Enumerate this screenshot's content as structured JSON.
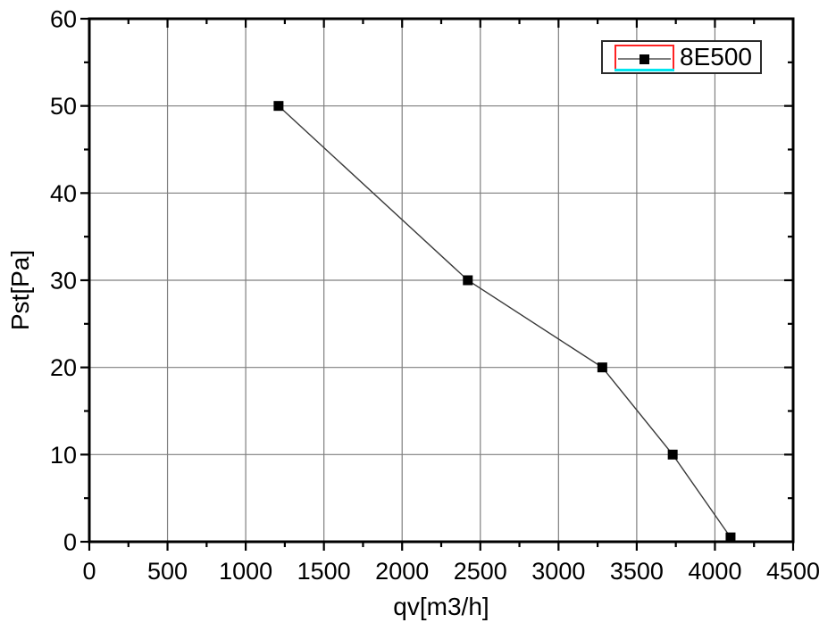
{
  "chart_data": {
    "type": "line",
    "title": "",
    "xlabel": "qv[m3/h]",
    "ylabel": "Pst[Pa]",
    "xlim": [
      0,
      4500
    ],
    "ylim": [
      0,
      60
    ],
    "x_major_ticks": [
      0,
      500,
      1000,
      1500,
      2000,
      2500,
      3000,
      3500,
      4000,
      4500
    ],
    "x_minor_step": 250,
    "y_major_ticks": [
      0,
      10,
      20,
      30,
      40,
      50,
      60
    ],
    "y_minor_step": 5,
    "grid": true,
    "legend_position": "top-right",
    "series": [
      {
        "name": "8E500",
        "marker": "square",
        "marker_size": 11,
        "color": "#000000",
        "line_color": "#3a3a3a",
        "x": [
          1210,
          2420,
          3280,
          3730,
          4100
        ],
        "y": [
          50,
          30,
          20,
          10,
          0.5
        ]
      }
    ]
  },
  "axes": {
    "x": {
      "title": "qv[m3/h]"
    },
    "y": {
      "title": "Pst[Pa]"
    }
  },
  "legend": {
    "label": "8E500",
    "selected": true,
    "selection_outline_color": "#ff2222",
    "selection_underline_color": "#00e6f0"
  },
  "colors": {
    "background": "#ffffff",
    "grid": "#7f7f7f",
    "axis": "#000000",
    "tick_label": "#000000",
    "series": "#000000"
  }
}
